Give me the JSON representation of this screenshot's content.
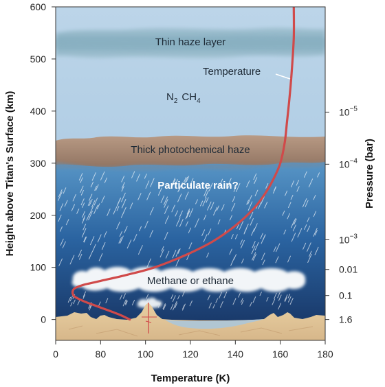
{
  "chart_data": {
    "type": "line",
    "xlabel": "Temperature (K)",
    "ylabel": "Height above Titan's Surface (km)",
    "y2label": "Pressure (bar)",
    "xlim": [
      60,
      180
    ],
    "ylim": [
      -40,
      600
    ],
    "x_ticks": [
      "0",
      "80",
      "100",
      "120",
      "140",
      "160",
      "180"
    ],
    "y_ticks": [
      "0",
      "100",
      "200",
      "300",
      "400",
      "500",
      "600"
    ],
    "pressure_ticks": [
      {
        "label": "1.6",
        "height": 0
      },
      {
        "label": "0.1",
        "height": 46
      },
      {
        "label": "0.01",
        "height": 96
      },
      {
        "label": "10",
        "sup": "−3",
        "height": 153
      },
      {
        "label": "10",
        "sup": "−4",
        "height": 298
      },
      {
        "label": "10",
        "sup": "−5",
        "height": 398
      }
    ],
    "series": [
      {
        "color": "#d04a4a",
        "x": [
          93,
          88,
          80,
          72,
          68,
          68,
          72,
          80,
          92,
          104,
          118,
          130,
          140,
          148,
          153,
          157,
          160,
          162,
          163,
          164,
          165,
          166,
          166
        ],
        "y": [
          0,
          10,
          23,
          36,
          46,
          58,
          66,
          74,
          86,
          100,
          124,
          150,
          180,
          212,
          240,
          270,
          300,
          340,
          380,
          420,
          470,
          540,
          600
        ]
      }
    ],
    "annotations": {
      "thin_haze": "Thin haze layer",
      "temperature": "Temperature",
      "composition": {
        "n": "N",
        "n_sub": "2",
        "ch": "CH",
        "ch_sub": "4"
      },
      "thick_haze": "Thick photochemical haze",
      "rain": "Particulate rain?",
      "clouds": "Methane or ethane"
    }
  }
}
